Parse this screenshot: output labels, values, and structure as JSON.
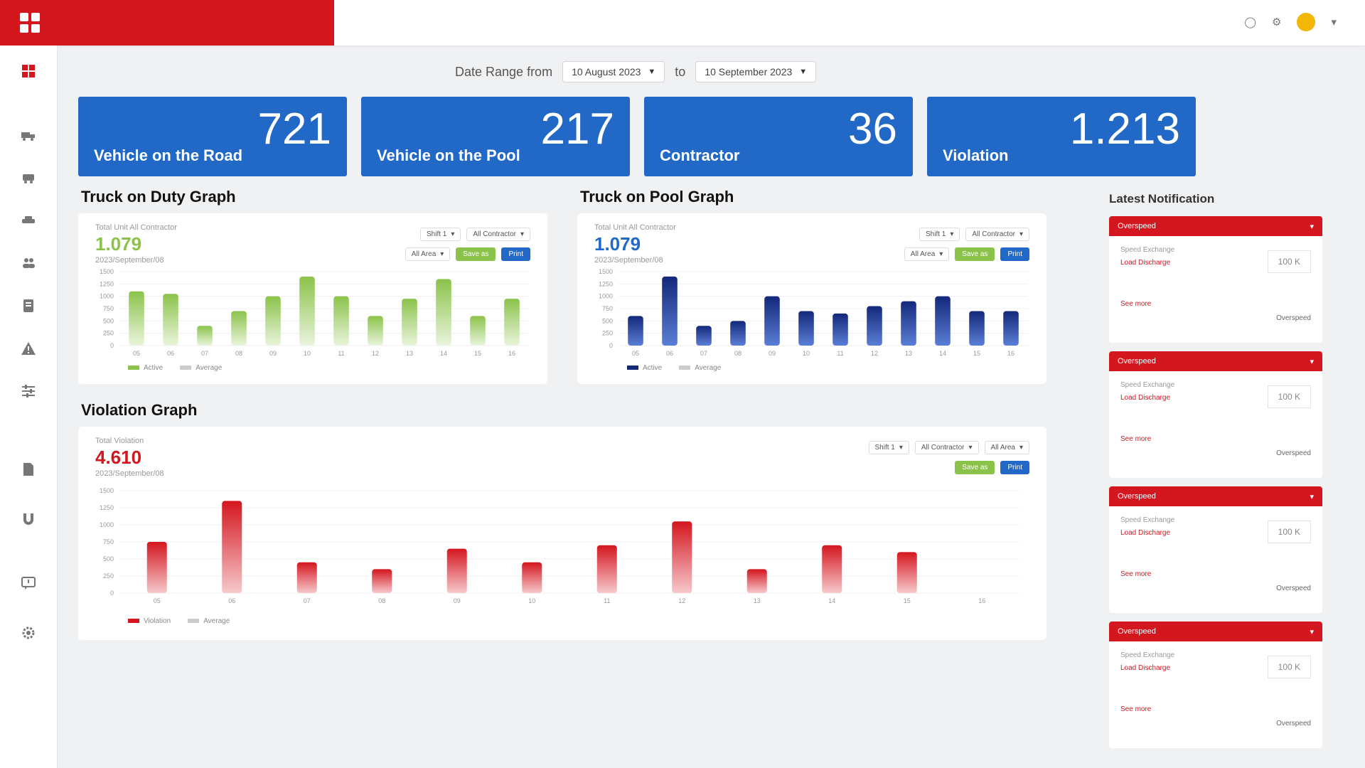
{
  "header": {
    "brand": ""
  },
  "daterange": {
    "label": "Date Range from",
    "from": "10 August 2023",
    "to_label": "to",
    "to": "10 September 2023"
  },
  "cards": [
    {
      "value": "721",
      "label": "Vehicle on the Road"
    },
    {
      "value": "217",
      "label": "Vehicle on the Pool"
    },
    {
      "value": "36",
      "label": "Contractor"
    },
    {
      "value": "1.213",
      "label": "Violation"
    }
  ],
  "duty": {
    "title": "Truck on Duty Graph",
    "sub": "Total Unit All Contractor",
    "value": "1.079",
    "date": "2023/September/08",
    "sel_shift": "Shift 1",
    "sel_contractor": "All Contractor",
    "sel_area": "All Area",
    "save_label": "Save as",
    "print_label": "Print",
    "legend_active": "Active",
    "legend_avg": "Average"
  },
  "pool": {
    "title": "Truck on Pool Graph",
    "sub": "Total Unit All Contractor",
    "value": "1.079",
    "date": "2023/September/08",
    "sel_shift": "Shift 1",
    "sel_contractor": "All Contractor",
    "sel_area": "All Area",
    "save_label": "Save as",
    "print_label": "Print",
    "legend_active": "Active",
    "legend_avg": "Average"
  },
  "violation": {
    "title": "Violation Graph",
    "sub": "Total Violation",
    "value": "4.610",
    "date": "2023/September/08",
    "sel_shift": "Shift 1",
    "sel_contractor": "All Contractor",
    "sel_area": "All Area",
    "save_label": "Save as",
    "print_label": "Print",
    "legend_violation": "Violation",
    "legend_avg": "Average"
  },
  "notifications": {
    "title": "Latest Notification",
    "items": [
      {
        "status": "Overspeed",
        "speed_label": "Speed Exchange",
        "speed_sub": "Load Discharge",
        "value": "100 K",
        "link": "See more",
        "tag": "Overspeed"
      },
      {
        "status": "Overspeed",
        "speed_label": "Speed Exchange",
        "speed_sub": "Load Discharge",
        "value": "100 K",
        "link": "See more",
        "tag": "Overspeed"
      },
      {
        "status": "Overspeed",
        "speed_label": "Speed Exchange",
        "speed_sub": "Load Discharge",
        "value": "100 K",
        "link": "See more",
        "tag": "Overspeed"
      },
      {
        "status": "Overspeed",
        "speed_label": "Speed Exchange",
        "speed_sub": "Load Discharge",
        "value": "100 K",
        "link": "See more",
        "tag": "Overspeed"
      }
    ]
  },
  "colors": {
    "brand_red": "#d4161f",
    "card_blue": "#2268c7",
    "green": "#8bc34a",
    "navy": "#14287a"
  },
  "chart_data": [
    {
      "type": "bar",
      "categories": [
        "05",
        "06",
        "07",
        "08",
        "09",
        "10",
        "11",
        "12",
        "13",
        "14",
        "15",
        "16"
      ],
      "series": [
        {
          "name": "Active",
          "values": [
            1100,
            1050,
            400,
            700,
            1000,
            1400,
            1000,
            600,
            950,
            1350,
            600,
            950
          ]
        }
      ],
      "title": "Truck on Duty Graph",
      "yticks": [
        0,
        250,
        500,
        750,
        1000,
        1250,
        1500
      ],
      "ylim": [
        0,
        1500
      ]
    },
    {
      "type": "bar",
      "categories": [
        "05",
        "06",
        "07",
        "08",
        "09",
        "10",
        "11",
        "12",
        "13",
        "14",
        "15",
        "16"
      ],
      "series": [
        {
          "name": "Active",
          "values": [
            600,
            1400,
            400,
            500,
            1000,
            700,
            650,
            800,
            900,
            1000,
            700,
            700
          ]
        }
      ],
      "title": "Truck on Pool Graph",
      "yticks": [
        0,
        250,
        500,
        750,
        1000,
        1250,
        1500
      ],
      "ylim": [
        0,
        1500
      ]
    },
    {
      "type": "bar",
      "categories": [
        "05",
        "06",
        "07",
        "08",
        "09",
        "10",
        "11",
        "12",
        "13",
        "14",
        "15",
        "16"
      ],
      "series": [
        {
          "name": "Violation",
          "values": [
            750,
            1350,
            450,
            350,
            650,
            450,
            700,
            1050,
            350,
            700,
            600,
            0
          ]
        }
      ],
      "title": "Violation Graph",
      "yticks": [
        0,
        250,
        500,
        750,
        1000,
        1250,
        1500
      ],
      "ylim": [
        0,
        1500
      ]
    }
  ]
}
